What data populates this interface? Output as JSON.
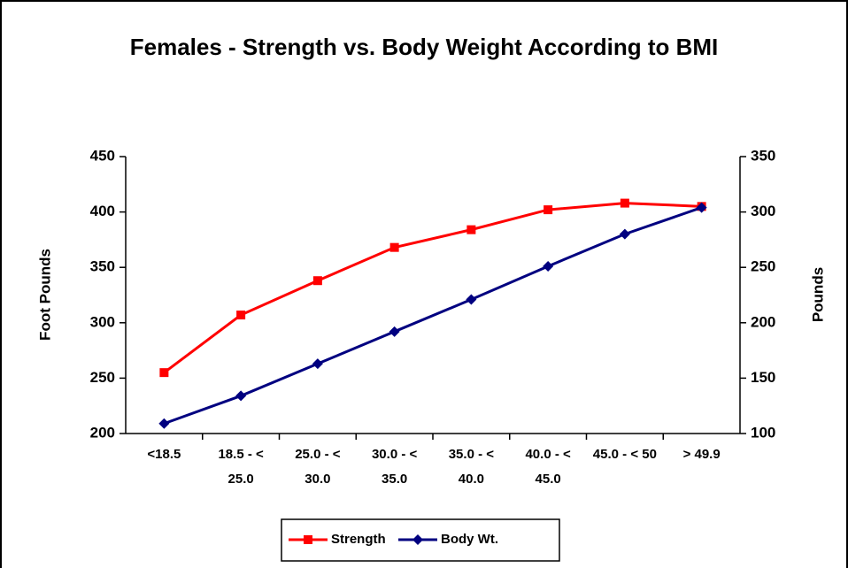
{
  "chart_data": {
    "type": "line",
    "title": "Females - Strength vs. Body Weight According to BMI",
    "categories": [
      "<18.5",
      "18.5 - < 25.0",
      "25.0 - < 30.0",
      "30.0 - < 35.0",
      "35.0 - < 40.0",
      "40.0 - < 45.0",
      "45.0 - < 50",
      "> 49.9"
    ],
    "series": [
      {
        "name": "Strength",
        "color": "#ff0000",
        "marker": "square",
        "values": [
          255,
          307,
          338,
          368,
          384,
          402,
          408,
          405
        ]
      },
      {
        "name": "Body Wt.",
        "color": "#000080",
        "marker": "diamond",
        "axis": "y2",
        "values": [
          109,
          134,
          163,
          192,
          221,
          251,
          280,
          304
        ]
      }
    ],
    "ylabel": "Foot Pounds",
    "y2label": "Pounds",
    "ylim": [
      200,
      450
    ],
    "yticks": [
      200,
      250,
      300,
      350,
      400,
      450
    ],
    "y2lim": [
      100,
      350
    ],
    "y2ticks": [
      100,
      150,
      200,
      250,
      300,
      350
    ],
    "legend": "bottom"
  }
}
